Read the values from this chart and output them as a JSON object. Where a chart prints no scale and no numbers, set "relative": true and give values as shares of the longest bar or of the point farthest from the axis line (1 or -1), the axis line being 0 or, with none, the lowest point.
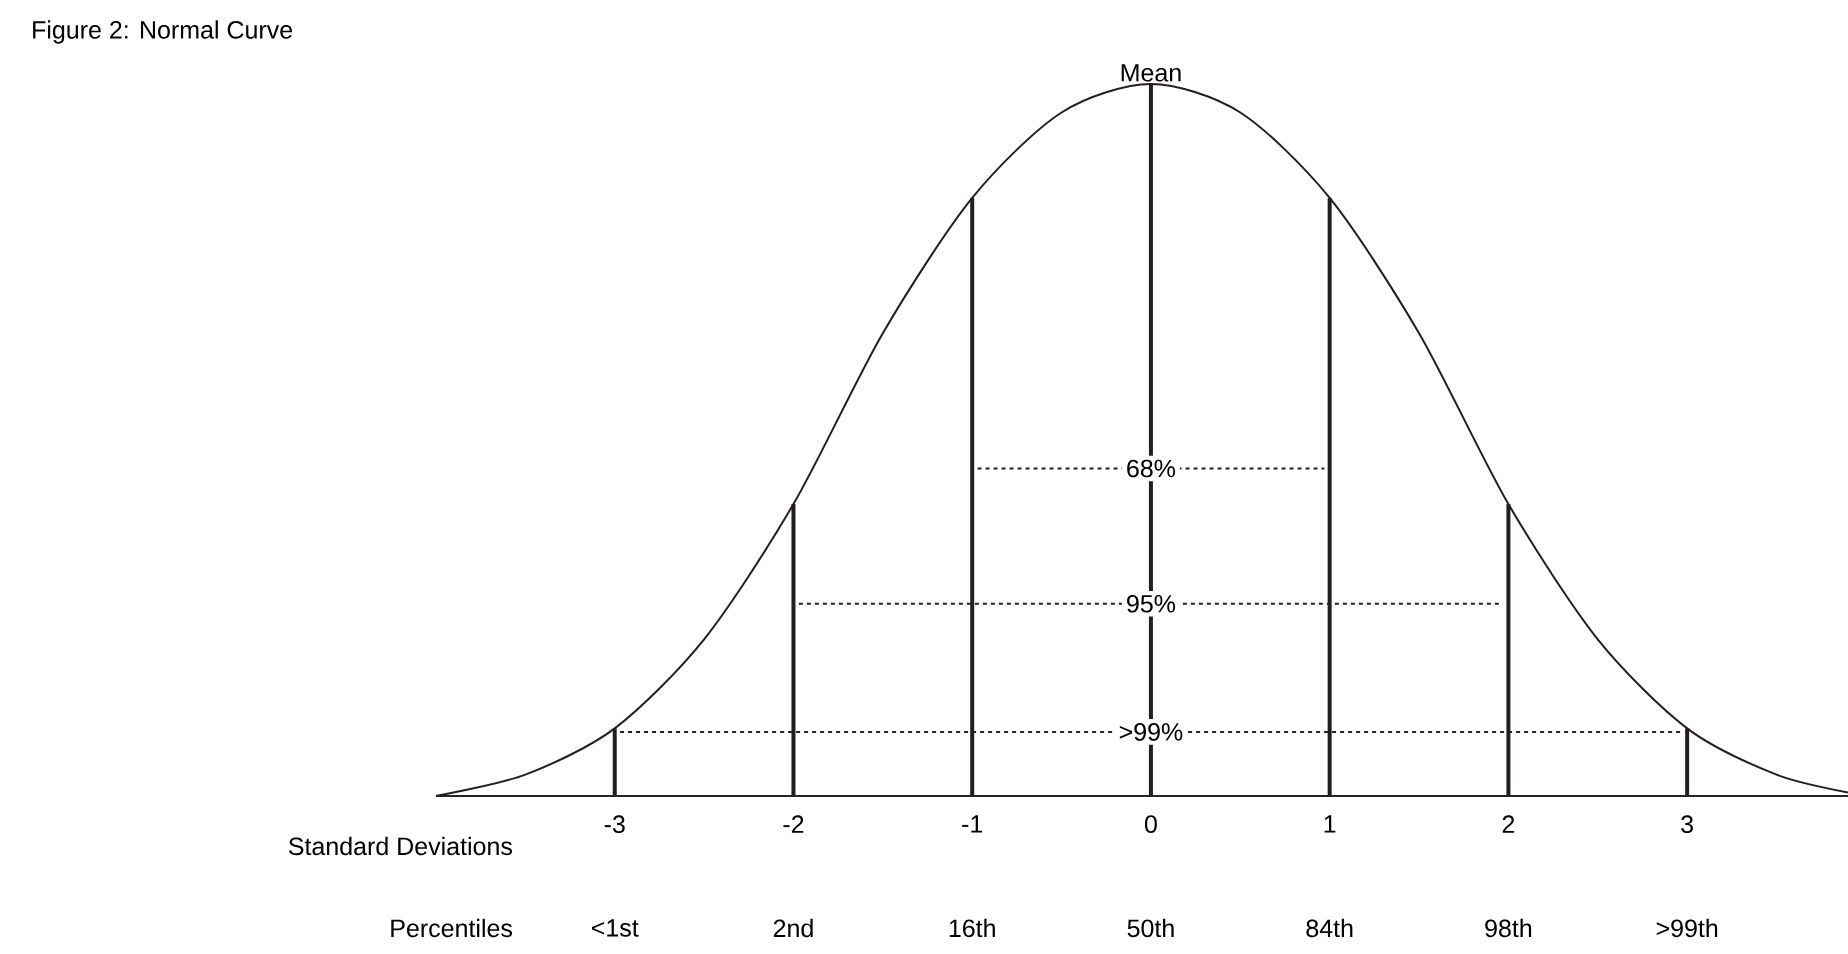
{
  "chart_data": {
    "type": "line",
    "title": "Figure 2: Normal Curve",
    "xlabel": "Standard Deviations",
    "relative": true,
    "xlim": [
      -4,
      3.9
    ],
    "xticks": [
      -3,
      -2,
      -1,
      0,
      1,
      2,
      3
    ],
    "annotations": [
      {
        "text": "Mean",
        "x": 0,
        "y": 1
      },
      "Percentiles",
      "<1st",
      "2nd",
      "16th",
      "50th",
      "84th",
      "98th",
      ">99th"
    ],
    "series": [
      {
        "type": "line",
        "color": "#231f20",
        "x": [
          -4,
          -3.5,
          -3,
          -2.5,
          -2,
          -1.5,
          -1,
          -0.5,
          0,
          0.5,
          1,
          1.5,
          2,
          2.5,
          3,
          3.5,
          3.9
        ],
        "values": [
          0,
          0.03,
          0.095,
          0.22,
          0.41,
          0.65,
          0.84,
          0.96,
          1,
          0.96,
          0.84,
          0.65,
          0.41,
          0.22,
          0.095,
          0.03,
          0.005
        ]
      },
      {
        "type": "bar",
        "color": "#231f20",
        "x": [
          -3,
          -2,
          -1,
          0,
          1,
          2,
          3
        ],
        "values": [
          0.095,
          0.41,
          0.84,
          1,
          0.84,
          0.41,
          0.095
        ]
      },
      {
        "type": "line",
        "name": "68%",
        "color": "#231f20",
        "line_style": "dotted",
        "x": [
          -0.97,
          0.97
        ],
        "values": [
          0.46,
          0.46
        ]
      },
      {
        "type": "line",
        "name": "95%",
        "color": "#231f20",
        "line_style": "dotted",
        "x": [
          -1.97,
          1.97
        ],
        "values": [
          0.27,
          0.27
        ]
      },
      {
        "type": "line",
        "name": ">99%",
        "color": "#231f20",
        "line_style": "dotted",
        "x": [
          -2.97,
          2.97
        ],
        "values": [
          0.09,
          0.09
        ]
      }
    ]
  }
}
